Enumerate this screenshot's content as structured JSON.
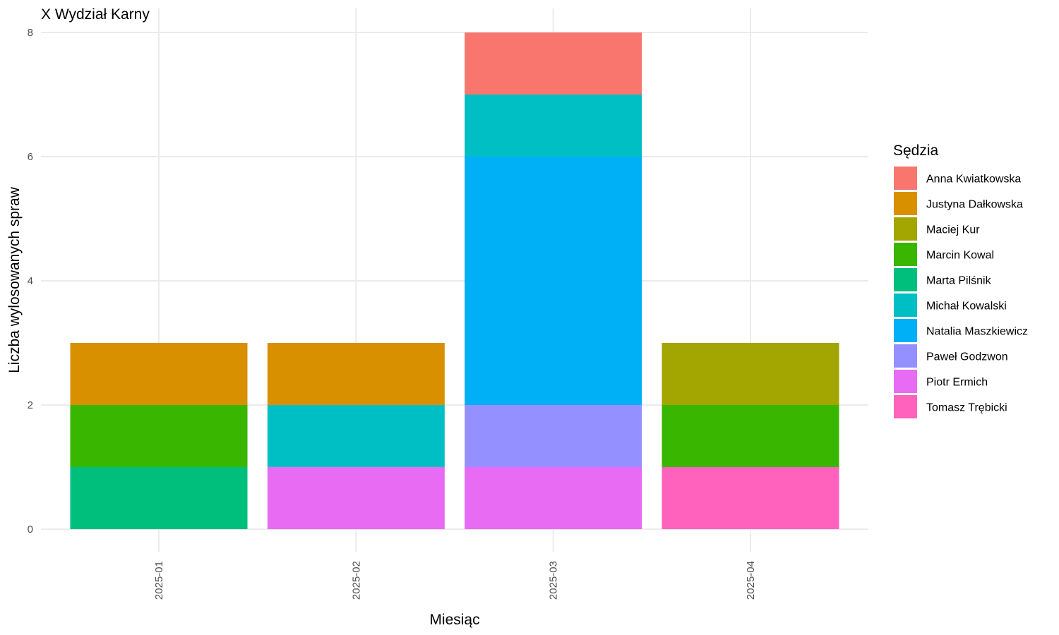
{
  "chart_data": {
    "type": "bar",
    "stacked": true,
    "title": "X Wydział Karny",
    "xlabel": "Miesiąc",
    "ylabel": "Liczba wylosowanych spraw",
    "ylim": [
      0,
      8
    ],
    "yticks": [
      0,
      2,
      4,
      6,
      8
    ],
    "grid": true,
    "legend_position": "right",
    "legend_title": "Sędzia",
    "categories": [
      "2025-01",
      "2025-02",
      "2025-03",
      "2025-04"
    ],
    "series": [
      {
        "name": "Anna Kwiatkowska",
        "color": "#F8766D",
        "values": [
          0,
          0,
          1,
          0
        ]
      },
      {
        "name": "Justyna Dałkowska",
        "color": "#D89000",
        "values": [
          1,
          1,
          0,
          0
        ]
      },
      {
        "name": "Maciej Kur",
        "color": "#A3A500",
        "values": [
          0,
          0,
          0,
          1
        ]
      },
      {
        "name": "Marcin Kowal",
        "color": "#39B600",
        "values": [
          1,
          0,
          0,
          1
        ]
      },
      {
        "name": "Marta Pilśnik",
        "color": "#00BF7D",
        "values": [
          1,
          0,
          0,
          0
        ]
      },
      {
        "name": "Michał Kowalski",
        "color": "#00BFC4",
        "values": [
          0,
          1,
          1,
          0
        ]
      },
      {
        "name": "Natalia Maszkiewicz",
        "color": "#00B0F6",
        "values": [
          0,
          0,
          4,
          0
        ]
      },
      {
        "name": "Paweł Godzwon",
        "color": "#9590FF",
        "values": [
          0,
          0,
          1,
          0
        ]
      },
      {
        "name": "Piotr Ermich",
        "color": "#E76BF3",
        "values": [
          0,
          1,
          1,
          0
        ]
      },
      {
        "name": "Tomasz Trębicki",
        "color": "#FF62BC",
        "values": [
          0,
          0,
          0,
          1
        ]
      }
    ]
  }
}
